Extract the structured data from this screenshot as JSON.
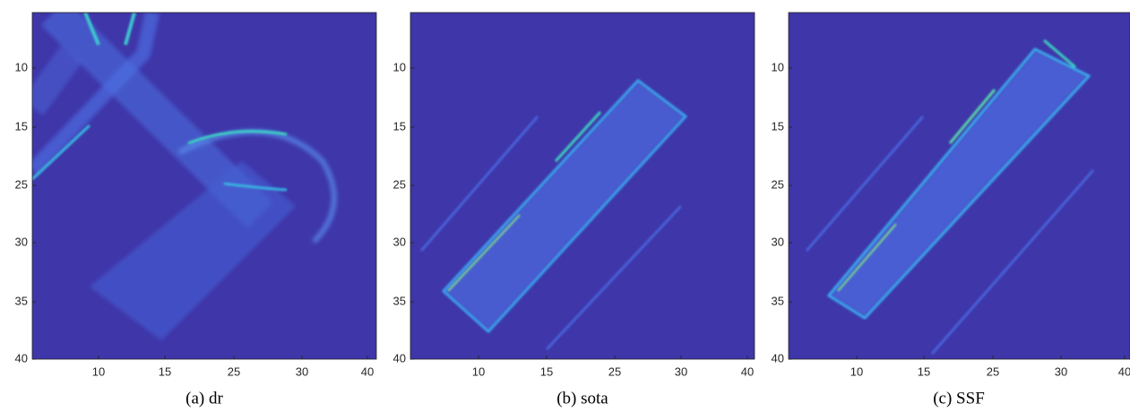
{
  "panels": [
    {
      "caption": "(a) dr",
      "xticks": [
        "10",
        "15",
        "25",
        "30",
        "40"
      ],
      "yticks": [
        "10",
        "15",
        "25",
        "30",
        "35",
        "40"
      ]
    },
    {
      "caption": "(b) sota",
      "xticks": [
        "10",
        "15",
        "25",
        "30",
        "40"
      ],
      "yticks": [
        "10",
        "15",
        "25",
        "30",
        "35",
        "40"
      ]
    },
    {
      "caption": "(c) SSF",
      "xticks": [
        "10",
        "15",
        "25",
        "30",
        "40"
      ],
      "yticks": [
        "10",
        "15",
        "25",
        "30",
        "35",
        "40"
      ]
    }
  ]
}
